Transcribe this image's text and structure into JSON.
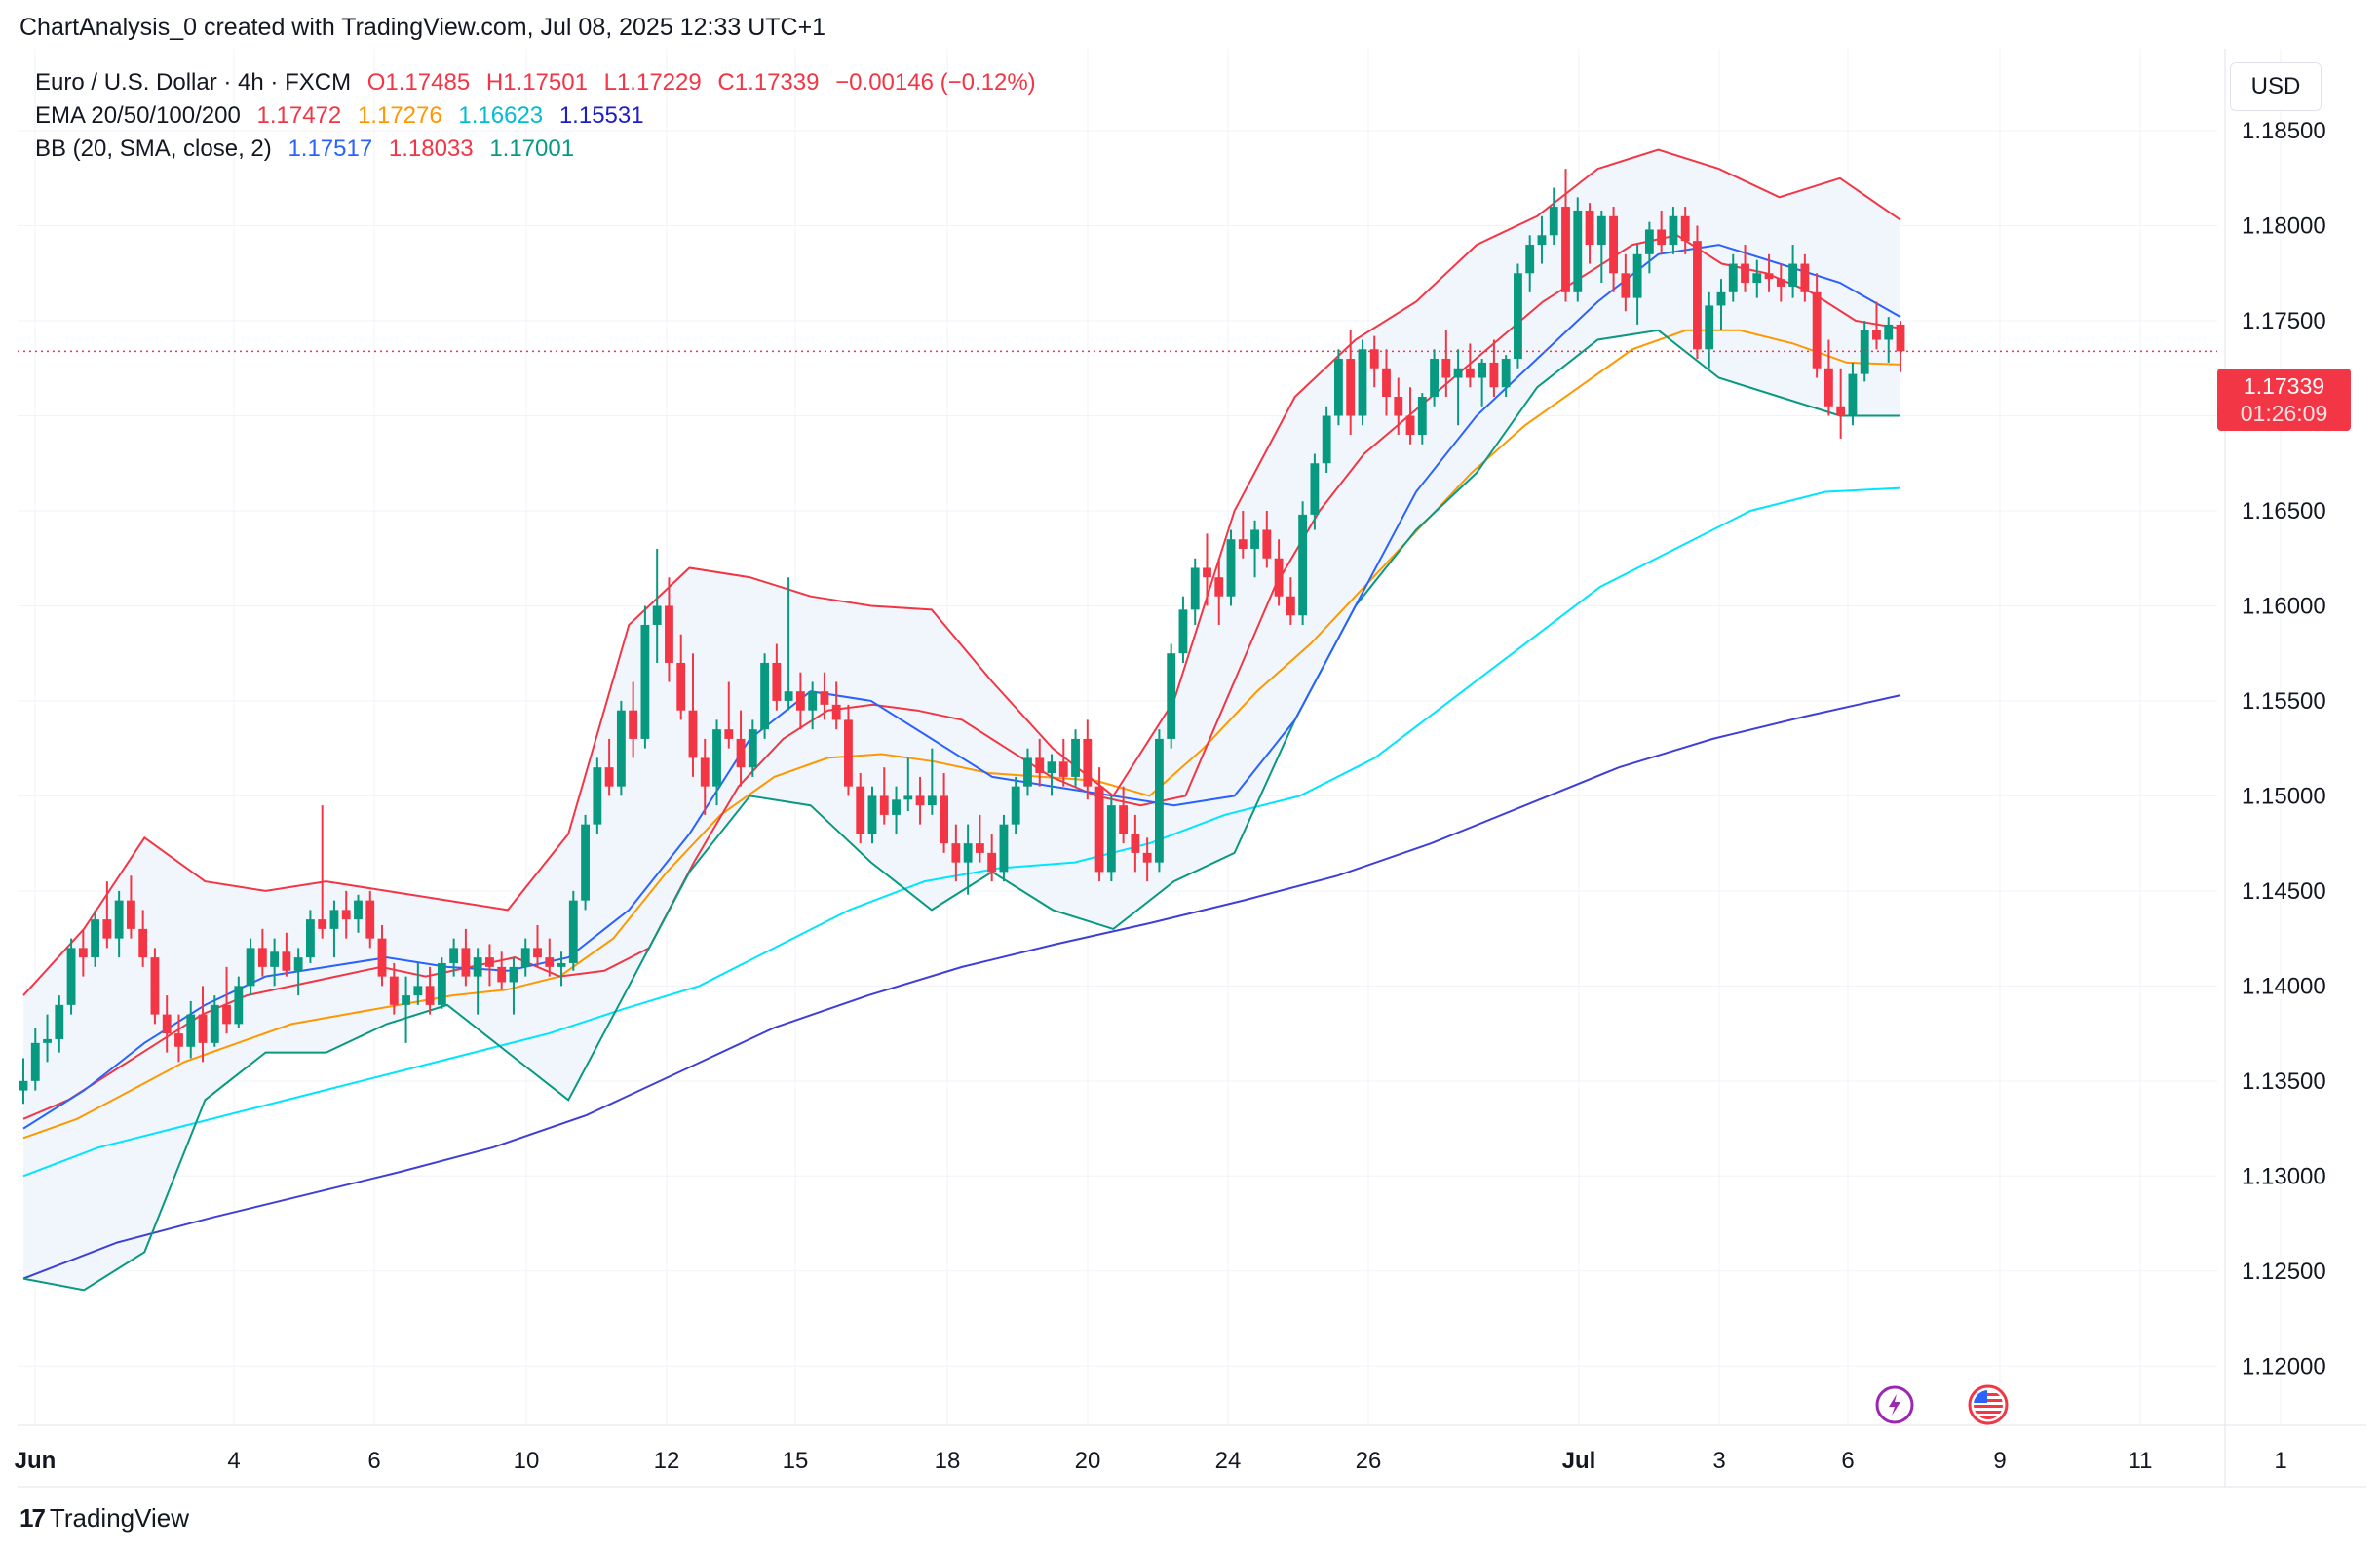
{
  "header": {
    "text": "ChartAnalysis_0 created with TradingView.com, Jul 08, 2025 12:33 UTC+1"
  },
  "legend": {
    "symbol": "Euro / U.S. Dollar · 4h · FXCM",
    "open": "O1.17485",
    "high": "H1.17501",
    "low": "L1.17229",
    "close": "C1.17339",
    "change": "−0.00146 (−0.12%)",
    "ema_label": "EMA 20/50/100/200",
    "ema20": "1.17472",
    "ema50": "1.17276",
    "ema100": "1.16623",
    "ema200": "1.15531",
    "bb_label": "BB (20, SMA, close, 2)",
    "bb_basis": "1.17517",
    "bb_upper": "1.18033",
    "bb_lower": "1.17001"
  },
  "currency": "USD",
  "price_badge": {
    "price": "1.17339",
    "countdown": "01:26:09"
  },
  "branding": "TradingView",
  "colors": {
    "up": "#089981",
    "down": "#f23645",
    "ema20": "#f23645",
    "ema50": "#ff9800",
    "ema100": "#00e5ff",
    "ema200": "#3f3fd8",
    "bb_basis": "#2962ff",
    "bb_upper": "#f23645",
    "bb_lower": "#089981",
    "bb_fill": "#eef5fc"
  },
  "icons": [
    "lightning-icon",
    "us-flag-icon"
  ],
  "chart_data": {
    "type": "candlestick",
    "timeframe": "4h",
    "y_ticks": [
      1.12,
      1.125,
      1.13,
      1.135,
      1.14,
      1.145,
      1.15,
      1.155,
      1.16,
      1.165,
      1.17,
      1.175,
      1.18,
      1.185
    ],
    "y_tick_labels": [
      "1.12000",
      "1.12500",
      "1.13000",
      "1.13500",
      "1.14000",
      "1.14500",
      "1.15000",
      "1.15500",
      "1.16000",
      "1.16500",
      "1.17000",
      "1.17500",
      "1.18000",
      "1.18500"
    ],
    "ylim": [
      1.1175,
      1.1888
    ],
    "x_ticks": [
      {
        "label": "Jun",
        "bar": 1,
        "bold": true
      },
      {
        "label": "4",
        "bar": 18
      },
      {
        "label": "6",
        "bar": 30
      },
      {
        "label": "10",
        "bar": 43
      },
      {
        "label": "12",
        "bar": 55
      },
      {
        "label": "15",
        "bar": 66
      },
      {
        "label": "18",
        "bar": 79
      },
      {
        "label": "20",
        "bar": 91
      },
      {
        "label": "24",
        "bar": 103
      },
      {
        "label": "26",
        "bar": 115
      },
      {
        "label": "Jul",
        "bar": 133,
        "bold": true
      },
      {
        "label": "3",
        "bar": 145
      },
      {
        "label": "6",
        "bar": 156
      },
      {
        "label": "9",
        "bar": 169
      },
      {
        "label": "11",
        "bar": 181
      },
      {
        "label": "1",
        "bar": 193
      }
    ],
    "bar_count_visible": 196,
    "last_price": 1.17339,
    "ohlc": [
      [
        1.1345,
        1.1362,
        1.1338,
        1.135
      ],
      [
        1.135,
        1.1378,
        1.1345,
        1.137
      ],
      [
        1.137,
        1.1385,
        1.136,
        1.1372
      ],
      [
        1.1372,
        1.1395,
        1.1365,
        1.139
      ],
      [
        1.139,
        1.1425,
        1.1385,
        1.142
      ],
      [
        1.142,
        1.143,
        1.1405,
        1.1415
      ],
      [
        1.1415,
        1.144,
        1.141,
        1.1435
      ],
      [
        1.1435,
        1.1455,
        1.142,
        1.1425
      ],
      [
        1.1425,
        1.145,
        1.1415,
        1.1445
      ],
      [
        1.1445,
        1.1458,
        1.1425,
        1.143
      ],
      [
        1.143,
        1.144,
        1.141,
        1.1415
      ],
      [
        1.1415,
        1.142,
        1.138,
        1.1385
      ],
      [
        1.1385,
        1.1395,
        1.1365,
        1.1375
      ],
      [
        1.1375,
        1.1385,
        1.136,
        1.1368
      ],
      [
        1.1368,
        1.1392,
        1.1362,
        1.1385
      ],
      [
        1.1385,
        1.14,
        1.136,
        1.137
      ],
      [
        1.137,
        1.1395,
        1.1368,
        1.139
      ],
      [
        1.139,
        1.141,
        1.1375,
        1.138
      ],
      [
        1.138,
        1.1405,
        1.1378,
        1.14
      ],
      [
        1.14,
        1.1425,
        1.1395,
        1.142
      ],
      [
        1.142,
        1.143,
        1.1405,
        1.141
      ],
      [
        1.141,
        1.1425,
        1.14,
        1.1418
      ],
      [
        1.1418,
        1.1428,
        1.1405,
        1.1408
      ],
      [
        1.1408,
        1.142,
        1.1395,
        1.1415
      ],
      [
        1.1415,
        1.144,
        1.1412,
        1.1435
      ],
      [
        1.1435,
        1.1495,
        1.1425,
        1.143
      ],
      [
        1.143,
        1.1445,
        1.1415,
        1.144
      ],
      [
        1.144,
        1.145,
        1.1425,
        1.1435
      ],
      [
        1.1435,
        1.1448,
        1.1428,
        1.1445
      ],
      [
        1.1445,
        1.145,
        1.142,
        1.1425
      ],
      [
        1.1425,
        1.1432,
        1.14,
        1.1405
      ],
      [
        1.1405,
        1.1412,
        1.1385,
        1.139
      ],
      [
        1.139,
        1.1405,
        1.137,
        1.1395
      ],
      [
        1.1395,
        1.1412,
        1.139,
        1.14
      ],
      [
        1.14,
        1.141,
        1.1385,
        1.139
      ],
      [
        1.139,
        1.1415,
        1.1388,
        1.1412
      ],
      [
        1.1412,
        1.1425,
        1.1405,
        1.142
      ],
      [
        1.142,
        1.143,
        1.14,
        1.1405
      ],
      [
        1.1405,
        1.142,
        1.1385,
        1.1415
      ],
      [
        1.1415,
        1.1422,
        1.14,
        1.141
      ],
      [
        1.141,
        1.1418,
        1.1398,
        1.1402
      ],
      [
        1.1402,
        1.1415,
        1.1385,
        1.141
      ],
      [
        1.141,
        1.1425,
        1.1405,
        1.142
      ],
      [
        1.142,
        1.1432,
        1.141,
        1.1415
      ],
      [
        1.1415,
        1.1425,
        1.1405,
        1.141
      ],
      [
        1.141,
        1.1418,
        1.14,
        1.1412
      ],
      [
        1.1412,
        1.145,
        1.1408,
        1.1445
      ],
      [
        1.1445,
        1.149,
        1.144,
        1.1485
      ],
      [
        1.1485,
        1.152,
        1.148,
        1.1515
      ],
      [
        1.1515,
        1.153,
        1.15,
        1.1505
      ],
      [
        1.1505,
        1.155,
        1.15,
        1.1545
      ],
      [
        1.1545,
        1.156,
        1.152,
        1.153
      ],
      [
        1.153,
        1.16,
        1.1525,
        1.159
      ],
      [
        1.159,
        1.163,
        1.157,
        1.16
      ],
      [
        1.16,
        1.1615,
        1.156,
        1.157
      ],
      [
        1.157,
        1.1585,
        1.154,
        1.1545
      ],
      [
        1.1545,
        1.1575,
        1.151,
        1.152
      ],
      [
        1.152,
        1.153,
        1.149,
        1.1505
      ],
      [
        1.1505,
        1.154,
        1.1495,
        1.1535
      ],
      [
        1.1535,
        1.156,
        1.1525,
        1.153
      ],
      [
        1.153,
        1.1545,
        1.1505,
        1.1515
      ],
      [
        1.1515,
        1.154,
        1.151,
        1.1535
      ],
      [
        1.1535,
        1.1575,
        1.153,
        1.157
      ],
      [
        1.157,
        1.158,
        1.1545,
        1.155
      ],
      [
        1.155,
        1.1615,
        1.1545,
        1.1555
      ],
      [
        1.1555,
        1.1565,
        1.1535,
        1.1545
      ],
      [
        1.1545,
        1.156,
        1.1535,
        1.1555
      ],
      [
        1.1555,
        1.1565,
        1.154,
        1.1548
      ],
      [
        1.1548,
        1.156,
        1.1535,
        1.154
      ],
      [
        1.154,
        1.1548,
        1.15,
        1.1505
      ],
      [
        1.1505,
        1.1512,
        1.1475,
        1.148
      ],
      [
        1.148,
        1.1505,
        1.1475,
        1.15
      ],
      [
        1.15,
        1.1515,
        1.1485,
        1.149
      ],
      [
        1.149,
        1.1505,
        1.148,
        1.1498
      ],
      [
        1.1498,
        1.152,
        1.1492,
        1.15
      ],
      [
        1.15,
        1.151,
        1.1485,
        1.1495
      ],
      [
        1.1495,
        1.1525,
        1.149,
        1.15
      ],
      [
        1.15,
        1.1512,
        1.147,
        1.1475
      ],
      [
        1.1475,
        1.1485,
        1.1455,
        1.1465
      ],
      [
        1.1465,
        1.1485,
        1.1448,
        1.1475
      ],
      [
        1.1475,
        1.149,
        1.1465,
        1.147
      ],
      [
        1.147,
        1.148,
        1.1455,
        1.146
      ],
      [
        1.146,
        1.149,
        1.1455,
        1.1485
      ],
      [
        1.1485,
        1.151,
        1.148,
        1.1505
      ],
      [
        1.1505,
        1.1525,
        1.15,
        1.152
      ],
      [
        1.152,
        1.153,
        1.1505,
        1.1512
      ],
      [
        1.1512,
        1.1522,
        1.15,
        1.1518
      ],
      [
        1.1518,
        1.153,
        1.1505,
        1.151
      ],
      [
        1.151,
        1.1535,
        1.1505,
        1.153
      ],
      [
        1.153,
        1.154,
        1.1498,
        1.1505
      ],
      [
        1.1505,
        1.1515,
        1.1455,
        1.146
      ],
      [
        1.146,
        1.15,
        1.1455,
        1.1495
      ],
      [
        1.1495,
        1.1505,
        1.1475,
        1.148
      ],
      [
        1.148,
        1.149,
        1.146,
        1.147
      ],
      [
        1.147,
        1.1478,
        1.1455,
        1.1465
      ],
      [
        1.1465,
        1.1535,
        1.146,
        1.153
      ],
      [
        1.153,
        1.158,
        1.1525,
        1.1575
      ],
      [
        1.1575,
        1.1605,
        1.157,
        1.1598
      ],
      [
        1.1598,
        1.1625,
        1.159,
        1.162
      ],
      [
        1.162,
        1.1638,
        1.16,
        1.1615
      ],
      [
        1.1615,
        1.1625,
        1.159,
        1.1605
      ],
      [
        1.1605,
        1.164,
        1.16,
        1.1635
      ],
      [
        1.1635,
        1.165,
        1.1625,
        1.163
      ],
      [
        1.163,
        1.1645,
        1.1615,
        1.164
      ],
      [
        1.164,
        1.165,
        1.162,
        1.1625
      ],
      [
        1.1625,
        1.1635,
        1.16,
        1.1605
      ],
      [
        1.1605,
        1.1615,
        1.159,
        1.1595
      ],
      [
        1.1595,
        1.1655,
        1.159,
        1.1648
      ],
      [
        1.1648,
        1.168,
        1.164,
        1.1675
      ],
      [
        1.1675,
        1.1705,
        1.167,
        1.17
      ],
      [
        1.17,
        1.1735,
        1.1695,
        1.173
      ],
      [
        1.173,
        1.1745,
        1.169,
        1.17
      ],
      [
        1.17,
        1.174,
        1.1695,
        1.1735
      ],
      [
        1.1735,
        1.1742,
        1.1715,
        1.1725
      ],
      [
        1.1725,
        1.1735,
        1.17,
        1.171
      ],
      [
        1.171,
        1.172,
        1.169,
        1.17
      ],
      [
        1.17,
        1.1715,
        1.1685,
        1.169
      ],
      [
        1.169,
        1.1712,
        1.1685,
        1.171
      ],
      [
        1.171,
        1.1735,
        1.1705,
        1.173
      ],
      [
        1.173,
        1.1745,
        1.171,
        1.172
      ],
      [
        1.172,
        1.1735,
        1.1695,
        1.1725
      ],
      [
        1.1725,
        1.1738,
        1.1715,
        1.172
      ],
      [
        1.172,
        1.173,
        1.1705,
        1.1728
      ],
      [
        1.1728,
        1.174,
        1.171,
        1.1715
      ],
      [
        1.1715,
        1.1732,
        1.171,
        1.173
      ],
      [
        1.173,
        1.178,
        1.1725,
        1.1775
      ],
      [
        1.1775,
        1.1795,
        1.1765,
        1.179
      ],
      [
        1.179,
        1.1805,
        1.178,
        1.1795
      ],
      [
        1.1795,
        1.182,
        1.179,
        1.181
      ],
      [
        1.181,
        1.183,
        1.176,
        1.1765
      ],
      [
        1.1765,
        1.1815,
        1.176,
        1.1808
      ],
      [
        1.1808,
        1.1812,
        1.178,
        1.179
      ],
      [
        1.179,
        1.1808,
        1.177,
        1.1805
      ],
      [
        1.1805,
        1.181,
        1.1765,
        1.1775
      ],
      [
        1.1775,
        1.1785,
        1.1755,
        1.1762
      ],
      [
        1.1762,
        1.179,
        1.1748,
        1.1785
      ],
      [
        1.1785,
        1.1802,
        1.1775,
        1.1798
      ],
      [
        1.1798,
        1.1808,
        1.1785,
        1.179
      ],
      [
        1.179,
        1.181,
        1.1785,
        1.1805
      ],
      [
        1.1805,
        1.181,
        1.1785,
        1.1792
      ],
      [
        1.1792,
        1.18,
        1.173,
        1.1735
      ],
      [
        1.1735,
        1.1765,
        1.1725,
        1.1758
      ],
      [
        1.1758,
        1.1772,
        1.1745,
        1.1765
      ],
      [
        1.1765,
        1.1785,
        1.176,
        1.178
      ],
      [
        1.178,
        1.179,
        1.1765,
        1.177
      ],
      [
        1.177,
        1.1782,
        1.1762,
        1.1775
      ],
      [
        1.1775,
        1.1785,
        1.1765,
        1.1772
      ],
      [
        1.1772,
        1.178,
        1.176,
        1.1768
      ],
      [
        1.1768,
        1.179,
        1.1762,
        1.178
      ],
      [
        1.178,
        1.1785,
        1.176,
        1.1765
      ],
      [
        1.1765,
        1.1775,
        1.172,
        1.1725
      ],
      [
        1.1725,
        1.174,
        1.17,
        1.1705
      ],
      [
        1.1705,
        1.1725,
        1.1688,
        1.17
      ],
      [
        1.17,
        1.1728,
        1.1695,
        1.1722
      ],
      [
        1.1722,
        1.175,
        1.1718,
        1.1745
      ],
      [
        1.1745,
        1.176,
        1.1735,
        1.174
      ],
      [
        1.174,
        1.1752,
        1.1728,
        1.1748
      ],
      [
        1.1748,
        1.175,
        1.1723,
        1.1734
      ]
    ],
    "ema20": [
      1.133,
      1.134,
      1.1355,
      1.137,
      1.1385,
      1.1395,
      1.14,
      1.1405,
      1.141,
      1.1405,
      1.141,
      1.1415,
      1.1405,
      1.1408,
      1.142,
      1.1465,
      1.1505,
      1.153,
      1.1545,
      1.1548,
      1.1545,
      1.154,
      1.1525,
      1.151,
      1.15,
      1.1495,
      1.15,
      1.1555,
      1.161,
      1.165,
      1.168,
      1.17,
      1.172,
      1.174,
      1.176,
      1.1775,
      1.179,
      1.1795,
      1.178,
      1.1775,
      1.1765,
      1.175,
      1.1746
    ],
    "ema50": [
      1.132,
      1.133,
      1.1345,
      1.136,
      1.137,
      1.138,
      1.1385,
      1.139,
      1.1395,
      1.1398,
      1.1405,
      1.1425,
      1.146,
      1.149,
      1.151,
      1.152,
      1.1522,
      1.1518,
      1.1512,
      1.151,
      1.1508,
      1.15,
      1.1525,
      1.1555,
      1.158,
      1.161,
      1.164,
      1.167,
      1.1695,
      1.1715,
      1.1735,
      1.1745,
      1.1745,
      1.1738,
      1.1728,
      1.1727
    ],
    "ema100": [
      1.13,
      1.1315,
      1.1325,
      1.1335,
      1.1345,
      1.1355,
      1.1365,
      1.1375,
      1.1388,
      1.14,
      1.142,
      1.144,
      1.1455,
      1.1462,
      1.1465,
      1.1475,
      1.149,
      1.15,
      1.152,
      1.155,
      1.158,
      1.161,
      1.163,
      1.165,
      1.166,
      1.1662
    ],
    "ema200": [
      1.1246,
      1.1265,
      1.1278,
      1.129,
      1.1302,
      1.1315,
      1.1332,
      1.1355,
      1.1378,
      1.1395,
      1.141,
      1.1422,
      1.1433,
      1.1445,
      1.1458,
      1.1475,
      1.1495,
      1.1515,
      1.153,
      1.1542,
      1.1553
    ],
    "bb_basis": [
      1.1325,
      1.1345,
      1.137,
      1.139,
      1.1405,
      1.141,
      1.1415,
      1.141,
      1.1408,
      1.1415,
      1.144,
      1.148,
      1.153,
      1.1555,
      1.155,
      1.153,
      1.151,
      1.1505,
      1.15,
      1.1495,
      1.15,
      1.154,
      1.16,
      1.166,
      1.17,
      1.173,
      1.176,
      1.1785,
      1.179,
      1.178,
      1.177,
      1.1752
    ],
    "bb_upper": [
      1.1395,
      1.143,
      1.1478,
      1.1455,
      1.145,
      1.1455,
      1.145,
      1.1445,
      1.144,
      1.148,
      1.159,
      1.162,
      1.1615,
      1.1605,
      1.16,
      1.1598,
      1.156,
      1.1525,
      1.15,
      1.155,
      1.165,
      1.171,
      1.174,
      1.176,
      1.179,
      1.1805,
      1.183,
      1.184,
      1.183,
      1.1815,
      1.1825,
      1.1803
    ],
    "bb_lower": [
      1.1246,
      1.124,
      1.126,
      1.134,
      1.1365,
      1.1365,
      1.138,
      1.139,
      1.1365,
      1.134,
      1.14,
      1.146,
      1.15,
      1.1495,
      1.1465,
      1.144,
      1.146,
      1.144,
      1.143,
      1.1455,
      1.147,
      1.154,
      1.16,
      1.164,
      1.167,
      1.1715,
      1.174,
      1.1745,
      1.172,
      1.171,
      1.17,
      1.17
    ]
  }
}
